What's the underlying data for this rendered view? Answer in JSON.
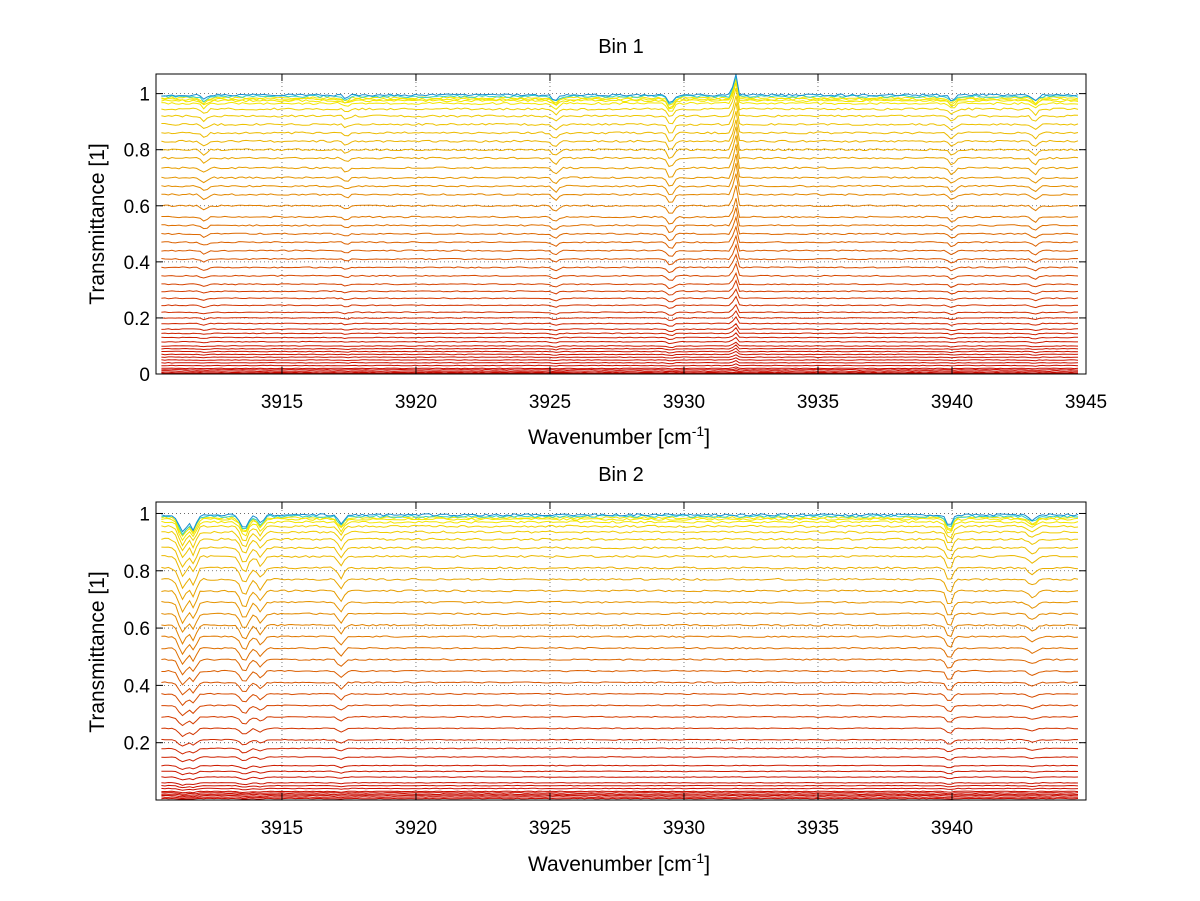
{
  "figure": {
    "background": "#ffffff",
    "colormap": "autumn-to-jet (red → orange → yellow → cyan/blue at top)"
  },
  "chart_data": [
    {
      "type": "line",
      "title": "Bin 1",
      "xlabel": "Wavenumber [cm",
      "xlabel_sup": "-1",
      "xlabel_close": "]",
      "ylabel": "Transmittance [1]",
      "xlim": [
        3910.3,
        3945
      ],
      "ylim": [
        0,
        1.07
      ],
      "xticks": [
        3915,
        3920,
        3925,
        3930,
        3935,
        3940,
        3945
      ],
      "xtick_labels": [
        "3915",
        "3920",
        "3925",
        "3930",
        "3935",
        "3940",
        "3945"
      ],
      "yticks": [
        0,
        0.2,
        0.4,
        0.6,
        0.8,
        1
      ],
      "ytick_labels": [
        "0",
        "0.2",
        "0.4",
        "0.6",
        "0.8",
        "1"
      ],
      "grid": true,
      "x_range_data": [
        3910.5,
        3944.7
      ],
      "series_levels": [
        0.0,
        0.005,
        0.01,
        0.015,
        0.02,
        0.03,
        0.04,
        0.05,
        0.06,
        0.07,
        0.08,
        0.09,
        0.1,
        0.115,
        0.13,
        0.145,
        0.16,
        0.18,
        0.2,
        0.22,
        0.245,
        0.27,
        0.295,
        0.32,
        0.35,
        0.38,
        0.41,
        0.44,
        0.47,
        0.5,
        0.53,
        0.56,
        0.6,
        0.64,
        0.67,
        0.7,
        0.735,
        0.77,
        0.8,
        0.83,
        0.86,
        0.89,
        0.92,
        0.945,
        0.965,
        0.975,
        0.98,
        0.985,
        0.99,
        0.995
      ],
      "features": [
        {
          "center": 3912.1,
          "width": 0.15,
          "depth": 0.025
        },
        {
          "center": 3917.4,
          "width": 0.12,
          "depth": 0.02
        },
        {
          "center": 3925.2,
          "width": 0.15,
          "depth": 0.03
        },
        {
          "center": 3929.5,
          "width": 0.15,
          "depth": 0.05
        },
        {
          "center": 3931.9,
          "width": 0.08,
          "depth": -0.15
        },
        {
          "center": 3940.0,
          "width": 0.15,
          "depth": 0.03
        },
        {
          "center": 3943.1,
          "width": 0.15,
          "depth": 0.03
        }
      ]
    },
    {
      "type": "line",
      "title": "Bin 2",
      "xlabel": "Wavenumber [cm",
      "xlabel_sup": "-1",
      "xlabel_close": "]",
      "ylabel": "Transmittance [1]",
      "xlim": [
        3910.3,
        3945
      ],
      "ylim": [
        0,
        1.04
      ],
      "xticks": [
        3915,
        3920,
        3925,
        3930,
        3935,
        3940
      ],
      "xtick_labels": [
        "3915",
        "3920",
        "3925",
        "3930",
        "3935",
        "3940"
      ],
      "yticks": [
        0.2,
        0.4,
        0.6,
        0.8,
        1
      ],
      "ytick_labels": [
        "0.2",
        "0.4",
        "0.6",
        "0.8",
        "1"
      ],
      "grid": true,
      "x_range_data": [
        3910.5,
        3944.7
      ],
      "series_levels": [
        0.005,
        0.01,
        0.015,
        0.02,
        0.025,
        0.03,
        0.04,
        0.05,
        0.06,
        0.08,
        0.1,
        0.12,
        0.15,
        0.18,
        0.21,
        0.25,
        0.29,
        0.33,
        0.37,
        0.41,
        0.45,
        0.49,
        0.53,
        0.57,
        0.61,
        0.65,
        0.69,
        0.73,
        0.77,
        0.81,
        0.85,
        0.88,
        0.91,
        0.935,
        0.955,
        0.97,
        0.98,
        0.985,
        0.99,
        0.995
      ],
      "features": [
        {
          "center": 3911.3,
          "width": 0.2,
          "depth": 0.1
        },
        {
          "center": 3911.7,
          "width": 0.15,
          "depth": 0.08
        },
        {
          "center": 3913.6,
          "width": 0.2,
          "depth": 0.08
        },
        {
          "center": 3914.2,
          "width": 0.15,
          "depth": 0.05
        },
        {
          "center": 3917.2,
          "width": 0.15,
          "depth": 0.05
        },
        {
          "center": 3939.9,
          "width": 0.15,
          "depth": 0.07
        },
        {
          "center": 3943.0,
          "width": 0.2,
          "depth": 0.03
        }
      ]
    }
  ]
}
